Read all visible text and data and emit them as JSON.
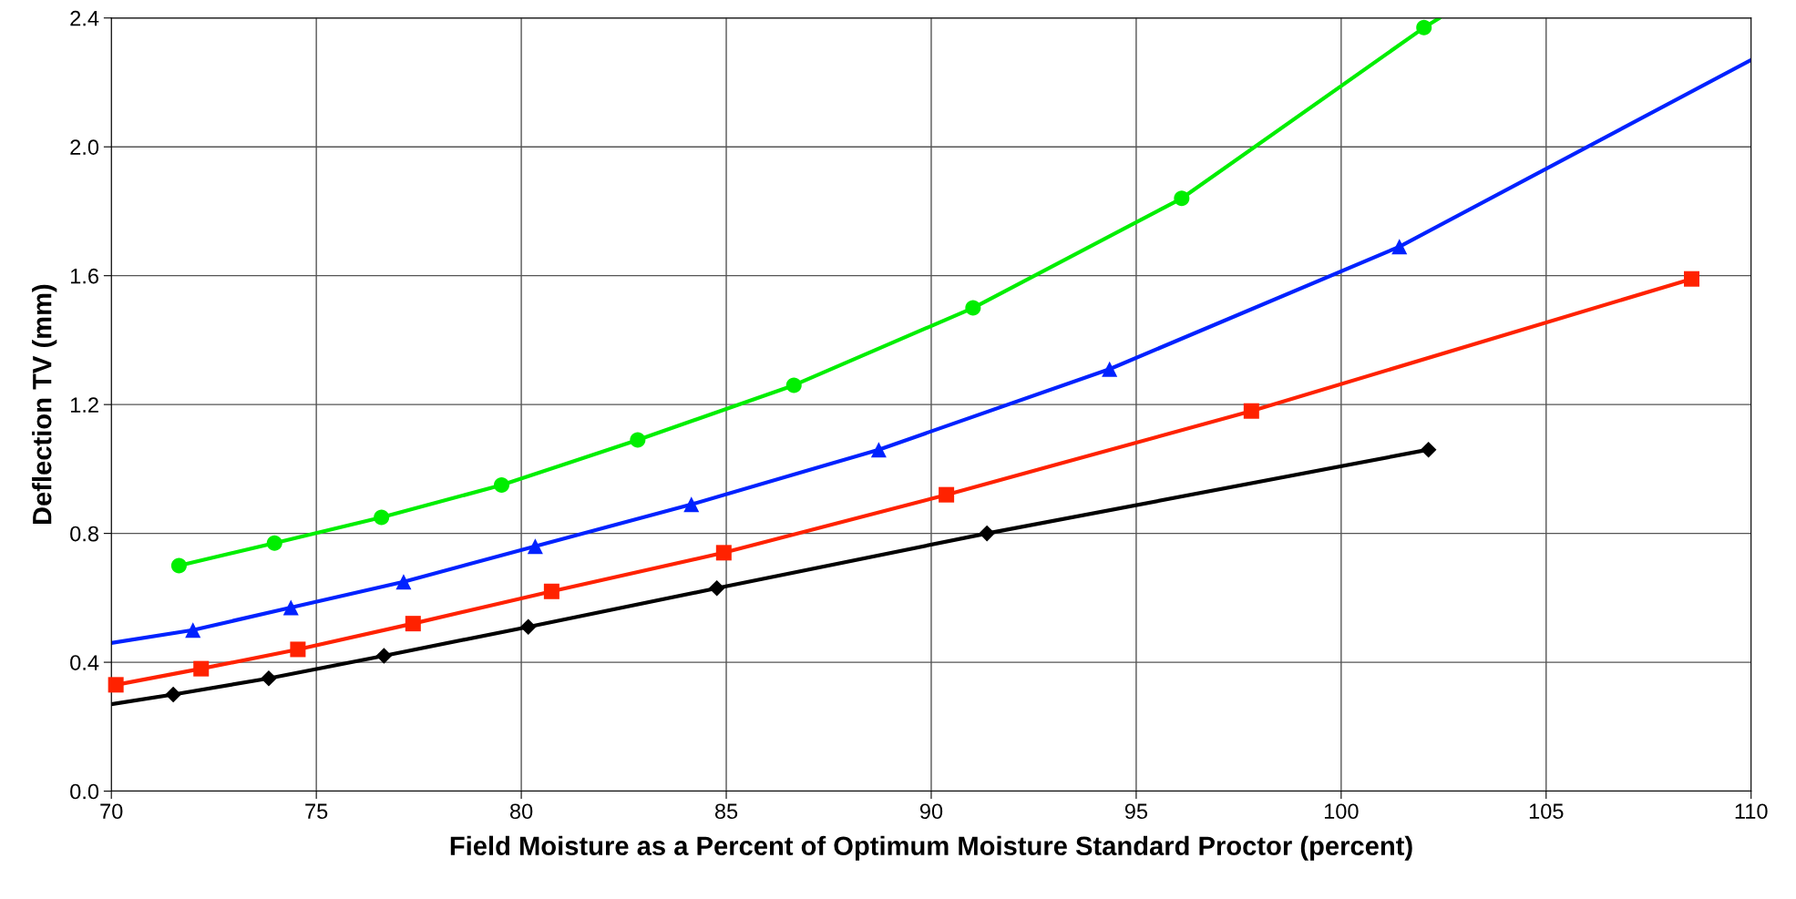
{
  "chart_data": {
    "type": "line",
    "xlabel": "Field Moisture as a Percent of Optimum Moisture Standard Proctor (percent)",
    "ylabel": "Deflection TV (mm)",
    "xlim": [
      70,
      110
    ],
    "xticks": [
      70,
      75,
      80,
      85,
      90,
      95,
      100,
      105,
      110
    ],
    "ylim": [
      0.0,
      2.4
    ],
    "yticks": [
      {
        "value": 0,
        "label": "0.0"
      },
      {
        "value": 0.4,
        "label": "0.4"
      },
      {
        "value": 0.8,
        "label": "0.8"
      },
      {
        "value": 1.2,
        "label": "1.2"
      },
      {
        "value": 1.6,
        "label": "1.6"
      },
      {
        "value": 2.0,
        "label": "2.0"
      },
      {
        "value": 2.4,
        "label": "2.4"
      }
    ],
    "grid": true,
    "line_style": "solid",
    "series": [
      {
        "color": "#00ee00",
        "x": [
          71.65,
          73.98,
          76.59,
          79.52,
          82.84,
          86.65,
          91.02,
          96.11,
          102.02,
          102.4
        ],
        "values": [
          0.7,
          0.77,
          0.85,
          0.95,
          1.09,
          1.26,
          1.5,
          1.84,
          2.37,
          2.4
        ]
      },
      {
        "type": "scatter",
        "marker": "circle",
        "color": "#00ee00",
        "x": [
          71.65,
          73.98,
          76.59,
          79.52,
          82.84,
          86.65,
          91.02,
          96.11,
          102.02
        ],
        "values": [
          0.7,
          0.77,
          0.85,
          0.95,
          1.09,
          1.26,
          1.5,
          1.84,
          2.37
        ]
      },
      {
        "color": "#0022ff",
        "x": [
          70,
          71.99,
          74.38,
          77.13,
          80.34,
          84.15,
          88.72,
          94.35,
          101.42,
          110
        ],
        "values": [
          0.46,
          0.5,
          0.57,
          0.65,
          0.76,
          0.89,
          1.06,
          1.31,
          1.69,
          2.27
        ]
      },
      {
        "type": "scatter",
        "marker": "triangle",
        "color": "#0022ff",
        "x": [
          71.99,
          74.38,
          77.13,
          80.34,
          84.15,
          88.72,
          94.35,
          101.42
        ],
        "values": [
          0.5,
          0.57,
          0.65,
          0.76,
          0.89,
          1.06,
          1.31,
          1.69
        ]
      },
      {
        "color": "#ff2200",
        "x": [
          70.11,
          72.19,
          74.55,
          77.36,
          80.74,
          84.94,
          90.37,
          97.81,
          108.55
        ],
        "values": [
          0.33,
          0.38,
          0.44,
          0.52,
          0.62,
          0.74,
          0.92,
          1.18,
          1.59
        ]
      },
      {
        "type": "scatter",
        "marker": "square",
        "color": "#ff2200",
        "x": [
          70.11,
          72.19,
          74.55,
          77.36,
          80.74,
          84.94,
          90.37,
          97.81,
          108.55
        ],
        "values": [
          0.33,
          0.38,
          0.44,
          0.52,
          0.62,
          0.74,
          0.92,
          1.18,
          1.59
        ]
      },
      {
        "color": "#000000",
        "x": [
          70,
          71.51,
          73.84,
          76.65,
          80.17,
          84.77,
          91.36,
          102.13
        ],
        "values": [
          0.27,
          0.3,
          0.35,
          0.42,
          0.51,
          0.63,
          0.8,
          1.06
        ]
      },
      {
        "type": "scatter",
        "marker": "diamond",
        "color": "#000000",
        "x": [
          71.51,
          73.84,
          76.65,
          80.17,
          84.77,
          91.36,
          102.13
        ],
        "values": [
          0.3,
          0.35,
          0.42,
          0.51,
          0.63,
          0.8,
          1.06
        ]
      }
    ]
  }
}
